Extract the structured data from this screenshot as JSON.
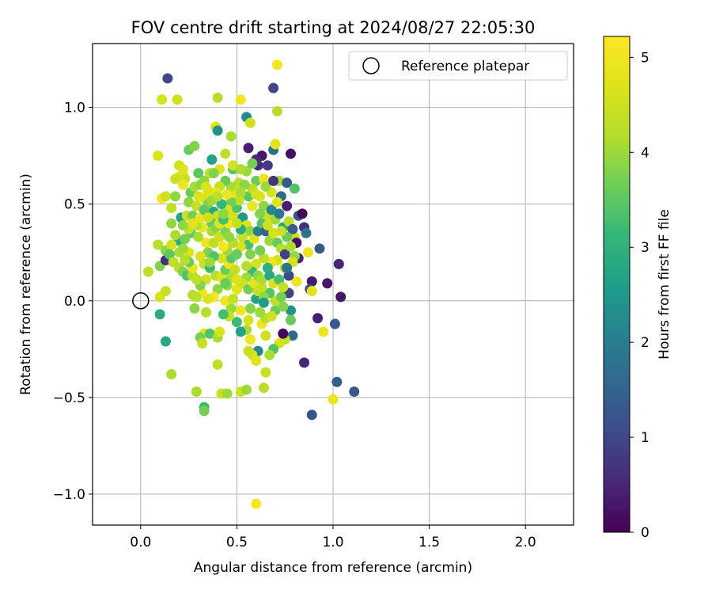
{
  "chart_data": {
    "type": "scatter",
    "title": "FOV centre drift starting at 2024/08/27 22:05:30",
    "xlabel": "Angular distance from reference (arcmin)",
    "ylabel": "Rotation from reference (arcmin)",
    "xlim": [
      -0.25,
      2.25
    ],
    "ylim": [
      -1.16,
      1.33
    ],
    "xticks": [
      "0.0",
      "0.5",
      "1.0",
      "1.5",
      "2.0"
    ],
    "xtick_values": [
      0,
      0.5,
      1.0,
      1.5,
      2.0
    ],
    "yticks": [
      "−1.0",
      "−0.5",
      "0.0",
      "0.5",
      "1.0"
    ],
    "ytick_values": [
      -1.0,
      -0.5,
      0.0,
      0.5,
      1.0
    ],
    "grid": true,
    "colormap": "viridis",
    "colorbar": {
      "label": "Hours from first FF file",
      "range": [
        0,
        5.22
      ],
      "ticks": [
        "0",
        "1",
        "2",
        "3",
        "4",
        "5"
      ],
      "tick_values": [
        0,
        1,
        2,
        3,
        4,
        5
      ]
    },
    "legend": {
      "placement": "top-right",
      "entries": [
        "Reference platepar"
      ]
    },
    "reference_point": {
      "x": 0.0,
      "y": 0.0,
      "label": "Reference platepar"
    },
    "points": [
      [
        0.14,
        1.15,
        1.0
      ],
      [
        0.69,
        1.1,
        1.0
      ],
      [
        0.71,
        1.22,
        5.1
      ],
      [
        0.11,
        1.04,
        4.6
      ],
      [
        0.19,
        1.04,
        4.5
      ],
      [
        0.52,
        1.04,
        5.1
      ],
      [
        0.4,
        1.05,
        4.2
      ],
      [
        0.55,
        0.95,
        2.3
      ],
      [
        0.57,
        0.92,
        4.5
      ],
      [
        0.71,
        0.98,
        4.2
      ],
      [
        0.39,
        0.9,
        4.7
      ],
      [
        0.4,
        0.88,
        2.4
      ],
      [
        0.47,
        0.85,
        4.1
      ],
      [
        0.56,
        0.79,
        0.4
      ],
      [
        0.69,
        0.78,
        1.7
      ],
      [
        0.7,
        0.81,
        4.8
      ],
      [
        0.78,
        0.76,
        0.2
      ],
      [
        0.63,
        0.75,
        0.3
      ],
      [
        0.09,
        0.75,
        4.7
      ],
      [
        0.25,
        0.78,
        3.6
      ],
      [
        0.28,
        0.8,
        3.8
      ],
      [
        0.37,
        0.73,
        2.7
      ],
      [
        0.44,
        0.76,
        4.3
      ],
      [
        0.6,
        0.73,
        0.5
      ],
      [
        0.66,
        0.7,
        0.8
      ],
      [
        0.72,
        0.62,
        4.1
      ],
      [
        0.76,
        0.61,
        1.3
      ],
      [
        0.8,
        0.58,
        3.4
      ],
      [
        0.55,
        0.67,
        4.0
      ],
      [
        0.2,
        0.7,
        4.5
      ],
      [
        0.22,
        0.65,
        4.7
      ],
      [
        0.3,
        0.66,
        3.5
      ],
      [
        0.33,
        0.62,
        3.9
      ],
      [
        0.41,
        0.68,
        4.8
      ],
      [
        0.48,
        0.68,
        3.4
      ],
      [
        0.51,
        0.61,
        4.3
      ],
      [
        0.6,
        0.62,
        3.6
      ],
      [
        0.64,
        0.63,
        4.9
      ],
      [
        0.68,
        0.56,
        4.6
      ],
      [
        0.73,
        0.54,
        1.6
      ],
      [
        0.76,
        0.49,
        0.4
      ],
      [
        0.82,
        0.44,
        1.2
      ],
      [
        0.84,
        0.45,
        0.1
      ],
      [
        0.85,
        0.38,
        0.6
      ],
      [
        0.86,
        0.35,
        1.8
      ],
      [
        0.8,
        0.33,
        4.5
      ],
      [
        0.81,
        0.3,
        0.2
      ],
      [
        0.82,
        0.22,
        0.5
      ],
      [
        0.87,
        0.25,
        4.9
      ],
      [
        0.93,
        0.27,
        1.3
      ],
      [
        0.89,
        0.1,
        0.3
      ],
      [
        0.97,
        0.09,
        0.3
      ],
      [
        1.03,
        0.19,
        0.5
      ],
      [
        1.04,
        0.02,
        0.3
      ],
      [
        0.88,
        0.06,
        1.1
      ],
      [
        0.89,
        0.05,
        4.8
      ],
      [
        0.81,
        0.1,
        5.0
      ],
      [
        0.77,
        0.04,
        0.9
      ],
      [
        0.78,
        -0.05,
        2.4
      ],
      [
        0.78,
        -0.1,
        3.6
      ],
      [
        0.92,
        -0.09,
        0.4
      ],
      [
        1.01,
        -0.12,
        1.3
      ],
      [
        0.95,
        -0.16,
        4.9
      ],
      [
        0.79,
        -0.18,
        1.6
      ],
      [
        0.75,
        -0.2,
        4.4
      ],
      [
        0.74,
        -0.17,
        0.1
      ],
      [
        0.72,
        -0.22,
        4.6
      ],
      [
        0.69,
        -0.25,
        3.4
      ],
      [
        0.67,
        -0.28,
        4.1
      ],
      [
        0.61,
        -0.26,
        2.2
      ],
      [
        0.58,
        -0.28,
        4.6
      ],
      [
        0.6,
        -0.31,
        4.8
      ],
      [
        0.56,
        -0.26,
        4.4
      ],
      [
        0.57,
        -0.2,
        5.0
      ],
      [
        0.55,
        -0.15,
        4.1
      ],
      [
        0.52,
        -0.16,
        2.7
      ],
      [
        0.5,
        -0.11,
        3.2
      ],
      [
        0.56,
        -0.1,
        4.6
      ],
      [
        0.63,
        -0.12,
        5.0
      ],
      [
        0.65,
        -0.18,
        4.5
      ],
      [
        0.65,
        -0.09,
        4.2
      ],
      [
        0.7,
        -0.05,
        3.6
      ],
      [
        0.74,
        -0.03,
        3.8
      ],
      [
        0.7,
        0.0,
        4.3
      ],
      [
        0.73,
        0.02,
        3.7
      ],
      [
        0.67,
        0.04,
        3.4
      ],
      [
        0.63,
        0.07,
        4.4
      ],
      [
        0.6,
        0.01,
        2.7
      ],
      [
        0.57,
        -0.04,
        3.8
      ],
      [
        0.52,
        -0.05,
        4.9
      ],
      [
        0.47,
        -0.04,
        4.0
      ],
      [
        0.46,
        -0.08,
        4.4
      ],
      [
        0.43,
        -0.07,
        3.3
      ],
      [
        0.44,
        0.0,
        5.0
      ],
      [
        0.48,
        0.01,
        4.4
      ],
      [
        0.5,
        0.06,
        4.8
      ],
      [
        0.45,
        0.08,
        4.0
      ],
      [
        0.4,
        0.06,
        3.9
      ],
      [
        0.38,
        0.02,
        5.1
      ],
      [
        0.35,
        0.01,
        4.7
      ],
      [
        0.32,
        0.04,
        5.0
      ],
      [
        0.29,
        0.02,
        4.3
      ],
      [
        0.27,
        0.03,
        4.2
      ],
      [
        0.28,
        -0.04,
        3.9
      ],
      [
        0.34,
        -0.06,
        4.2
      ],
      [
        0.33,
        -0.17,
        4.8
      ],
      [
        0.31,
        -0.19,
        3.7
      ],
      [
        0.32,
        -0.22,
        4.4
      ],
      [
        0.36,
        -0.17,
        3.4
      ],
      [
        0.4,
        -0.19,
        4.1
      ],
      [
        0.41,
        -0.16,
        4.6
      ],
      [
        0.4,
        -0.33,
        4.3
      ],
      [
        0.29,
        -0.47,
        4.1
      ],
      [
        0.33,
        -0.55,
        3.2
      ],
      [
        0.33,
        -0.57,
        3.7
      ],
      [
        0.42,
        -0.48,
        4.4
      ],
      [
        0.45,
        -0.48,
        4.0
      ],
      [
        0.52,
        -0.47,
        4.5
      ],
      [
        0.55,
        -0.46,
        4.0
      ],
      [
        0.64,
        -0.45,
        4.2
      ],
      [
        0.65,
        -0.37,
        4.4
      ],
      [
        0.6,
        -1.05,
        5.1
      ],
      [
        0.16,
        -0.38,
        4.1
      ],
      [
        0.13,
        -0.21,
        2.8
      ],
      [
        0.1,
        -0.07,
        2.9
      ],
      [
        0.1,
        0.02,
        4.6
      ],
      [
        0.13,
        0.05,
        4.4
      ],
      [
        0.04,
        0.15,
        4.3
      ],
      [
        0.1,
        0.18,
        3.8
      ],
      [
        0.09,
        0.29,
        4.2
      ],
      [
        0.13,
        0.21,
        0.6
      ],
      [
        0.13,
        0.26,
        3.9
      ],
      [
        0.11,
        0.53,
        5.1
      ],
      [
        0.13,
        0.54,
        4.5
      ],
      [
        0.16,
        0.48,
        4.3
      ],
      [
        0.18,
        0.54,
        3.9
      ],
      [
        0.16,
        0.4,
        3.9
      ],
      [
        0.21,
        0.43,
        2.7
      ],
      [
        0.2,
        0.31,
        2.9
      ],
      [
        0.2,
        0.25,
        4.1
      ],
      [
        0.2,
        0.17,
        4.2
      ],
      [
        0.22,
        0.15,
        3.8
      ],
      [
        0.24,
        0.13,
        3.4
      ],
      [
        0.27,
        0.13,
        4.2
      ],
      [
        0.25,
        0.25,
        4.7
      ],
      [
        0.26,
        0.35,
        3.5
      ],
      [
        0.24,
        0.44,
        4.5
      ],
      [
        0.25,
        0.51,
        3.9
      ],
      [
        0.26,
        0.56,
        3.6
      ],
      [
        0.23,
        0.63,
        4.4
      ],
      [
        0.2,
        0.64,
        4.6
      ],
      [
        0.18,
        0.63,
        4.5
      ],
      [
        0.22,
        0.68,
        4.8
      ],
      [
        0.22,
        0.6,
        5.0
      ],
      [
        0.28,
        0.59,
        4.1
      ],
      [
        0.3,
        0.54,
        4.7
      ],
      [
        0.33,
        0.53,
        4.8
      ],
      [
        0.35,
        0.5,
        3.8
      ],
      [
        0.38,
        0.46,
        2.8
      ],
      [
        0.4,
        0.44,
        4.4
      ],
      [
        0.37,
        0.4,
        3.5
      ],
      [
        0.32,
        0.38,
        4.9
      ],
      [
        0.3,
        0.33,
        4.1
      ],
      [
        0.34,
        0.3,
        5.0
      ],
      [
        0.38,
        0.3,
        4.3
      ],
      [
        0.35,
        0.25,
        3.8
      ],
      [
        0.31,
        0.23,
        4.7
      ],
      [
        0.33,
        0.19,
        4.4
      ],
      [
        0.36,
        0.17,
        3.2
      ],
      [
        0.39,
        0.13,
        4.2
      ],
      [
        0.42,
        0.12,
        4.8
      ],
      [
        0.44,
        0.16,
        3.6
      ],
      [
        0.46,
        0.19,
        4.9
      ],
      [
        0.49,
        0.16,
        4.4
      ],
      [
        0.47,
        0.22,
        3.5
      ],
      [
        0.45,
        0.26,
        4.0
      ],
      [
        0.43,
        0.28,
        5.1
      ],
      [
        0.41,
        0.33,
        4.5
      ],
      [
        0.44,
        0.36,
        3.8
      ],
      [
        0.46,
        0.4,
        5.0
      ],
      [
        0.48,
        0.44,
        4.6
      ],
      [
        0.5,
        0.48,
        3.4
      ],
      [
        0.51,
        0.52,
        4.3
      ],
      [
        0.49,
        0.56,
        4.8
      ],
      [
        0.47,
        0.59,
        4.1
      ],
      [
        0.44,
        0.62,
        3.6
      ],
      [
        0.41,
        0.59,
        4.4
      ],
      [
        0.39,
        0.56,
        4.9
      ],
      [
        0.37,
        0.52,
        4.0
      ],
      [
        0.53,
        0.43,
        2.5
      ],
      [
        0.55,
        0.39,
        4.7
      ],
      [
        0.57,
        0.36,
        3.9
      ],
      [
        0.53,
        0.33,
        4.4
      ],
      [
        0.56,
        0.29,
        3.3
      ],
      [
        0.59,
        0.32,
        4.8
      ],
      [
        0.61,
        0.36,
        2.0
      ],
      [
        0.63,
        0.4,
        3.4
      ],
      [
        0.65,
        0.36,
        1.5
      ],
      [
        0.67,
        0.31,
        4.0
      ],
      [
        0.69,
        0.35,
        4.6
      ],
      [
        0.71,
        0.3,
        3.6
      ],
      [
        0.73,
        0.27,
        4.2
      ],
      [
        0.75,
        0.24,
        0.9
      ],
      [
        0.71,
        0.21,
        4.5
      ],
      [
        0.68,
        0.2,
        4.9
      ],
      [
        0.66,
        0.17,
        3.0
      ],
      [
        0.64,
        0.22,
        4.3
      ],
      [
        0.62,
        0.26,
        3.7
      ],
      [
        0.6,
        0.19,
        4.6
      ],
      [
        0.58,
        0.15,
        3.2
      ],
      [
        0.55,
        0.12,
        4.0
      ],
      [
        0.53,
        0.09,
        4.5
      ],
      [
        0.56,
        0.06,
        3.7
      ],
      [
        0.59,
        0.09,
        4.8
      ],
      [
        0.61,
        0.13,
        3.9
      ],
      [
        0.63,
        0.11,
        4.1
      ],
      [
        0.67,
        0.13,
        2.8
      ],
      [
        0.69,
        0.09,
        4.6
      ],
      [
        0.72,
        0.11,
        3.3
      ],
      [
        0.74,
        0.07,
        4.4
      ],
      [
        0.77,
        0.13,
        1.0
      ],
      [
        0.75,
        0.17,
        4.2
      ],
      [
        0.62,
        0.54,
        4.7
      ],
      [
        0.64,
        0.49,
        3.9
      ],
      [
        0.66,
        0.44,
        4.4
      ],
      [
        0.68,
        0.47,
        2.2
      ],
      [
        0.7,
        0.42,
        4.0
      ],
      [
        0.72,
        0.45,
        1.9
      ],
      [
        0.66,
        0.39,
        4.5
      ],
      [
        0.62,
        0.45,
        3.8
      ],
      [
        0.58,
        0.49,
        4.9
      ],
      [
        0.56,
        0.54,
        3.5
      ],
      [
        0.58,
        0.58,
        4.3
      ],
      [
        0.6,
        0.55,
        4.6
      ],
      [
        0.54,
        0.6,
        3.9
      ],
      [
        0.52,
        0.56,
        4.1
      ],
      [
        0.47,
        0.51,
        3.7
      ],
      [
        0.45,
        0.47,
        4.6
      ],
      [
        0.42,
        0.5,
        3.1
      ],
      [
        0.4,
        0.54,
        4.3
      ],
      [
        0.35,
        0.57,
        4.7
      ],
      [
        0.31,
        0.6,
        3.9
      ],
      [
        0.29,
        0.49,
        4.4
      ],
      [
        0.27,
        0.44,
        3.7
      ],
      [
        0.29,
        0.39,
        4.2
      ],
      [
        0.31,
        0.43,
        4.9
      ],
      [
        0.33,
        0.47,
        3.5
      ],
      [
        0.35,
        0.43,
        4.5
      ],
      [
        0.37,
        0.36,
        4.1
      ],
      [
        0.39,
        0.38,
        3.8
      ],
      [
        0.41,
        0.4,
        4.8
      ],
      [
        0.43,
        0.42,
        3.3
      ],
      [
        0.52,
        0.37,
        2.9
      ],
      [
        0.5,
        0.4,
        4.4
      ],
      [
        0.52,
        0.28,
        4.7
      ],
      [
        0.5,
        0.24,
        3.6
      ],
      [
        0.48,
        0.3,
        4.2
      ],
      [
        0.46,
        0.33,
        3.9
      ],
      [
        0.42,
        0.22,
        4.6
      ],
      [
        0.38,
        0.23,
        3.4
      ],
      [
        0.36,
        0.2,
        4.0
      ],
      [
        0.34,
        0.11,
        4.5
      ],
      [
        0.31,
        0.08,
        3.8
      ],
      [
        0.29,
        0.11,
        4.3
      ],
      [
        0.27,
        0.17,
        4.9
      ],
      [
        0.25,
        0.2,
        3.6
      ],
      [
        0.23,
        0.21,
        4.2
      ],
      [
        0.22,
        0.27,
        4.0
      ],
      [
        0.23,
        0.32,
        3.7
      ],
      [
        0.25,
        0.37,
        4.4
      ],
      [
        0.27,
        0.4,
        4.8
      ],
      [
        0.22,
        0.39,
        3.9
      ],
      [
        0.18,
        0.34,
        4.1
      ],
      [
        0.16,
        0.29,
        4.6
      ],
      [
        0.15,
        0.24,
        3.5
      ],
      [
        0.17,
        0.2,
        4.3
      ],
      [
        0.47,
        0.12,
        4.1
      ],
      [
        0.44,
        0.09,
        3.6
      ],
      [
        0.5,
        0.11,
        4.7
      ],
      [
        0.55,
        0.18,
        4.2
      ],
      [
        0.57,
        0.24,
        3.8
      ],
      [
        0.61,
        0.05,
        4.4
      ],
      [
        0.64,
        0.02,
        3.9
      ],
      [
        0.68,
        -0.08,
        4.5
      ],
      [
        0.64,
        -0.01,
        2.6
      ],
      [
        0.62,
        -0.06,
        4.0
      ],
      [
        0.85,
        -0.32,
        0.5
      ],
      [
        0.89,
        -0.59,
        1.2
      ],
      [
        1.02,
        -0.42,
        1.4
      ],
      [
        1.11,
        -0.47,
        1.3
      ],
      [
        1.0,
        -0.51,
        4.9
      ],
      [
        0.36,
        0.66,
        4.3
      ],
      [
        0.34,
        0.59,
        4.7
      ],
      [
        0.38,
        0.66,
        3.8
      ],
      [
        0.48,
        0.7,
        4.6
      ],
      [
        0.52,
        0.68,
        4.1
      ],
      [
        0.45,
        0.55,
        4.9
      ],
      [
        0.43,
        0.45,
        3.9
      ],
      [
        0.61,
        0.7,
        0.6
      ],
      [
        0.58,
        0.71,
        3.7
      ],
      [
        0.65,
        0.59,
        4.0
      ],
      [
        0.69,
        0.62,
        0.7
      ],
      [
        0.71,
        0.51,
        4.8
      ],
      [
        0.74,
        0.38,
        2.8
      ],
      [
        0.77,
        0.41,
        4.3
      ],
      [
        0.79,
        0.37,
        1.4
      ],
      [
        0.76,
        0.33,
        3.6
      ],
      [
        0.73,
        0.36,
        4.5
      ],
      [
        0.78,
        0.28,
        4.1
      ],
      [
        0.8,
        0.23,
        3.9
      ],
      [
        0.79,
        0.2,
        4.6
      ],
      [
        0.76,
        0.17,
        1.8
      ]
    ]
  }
}
